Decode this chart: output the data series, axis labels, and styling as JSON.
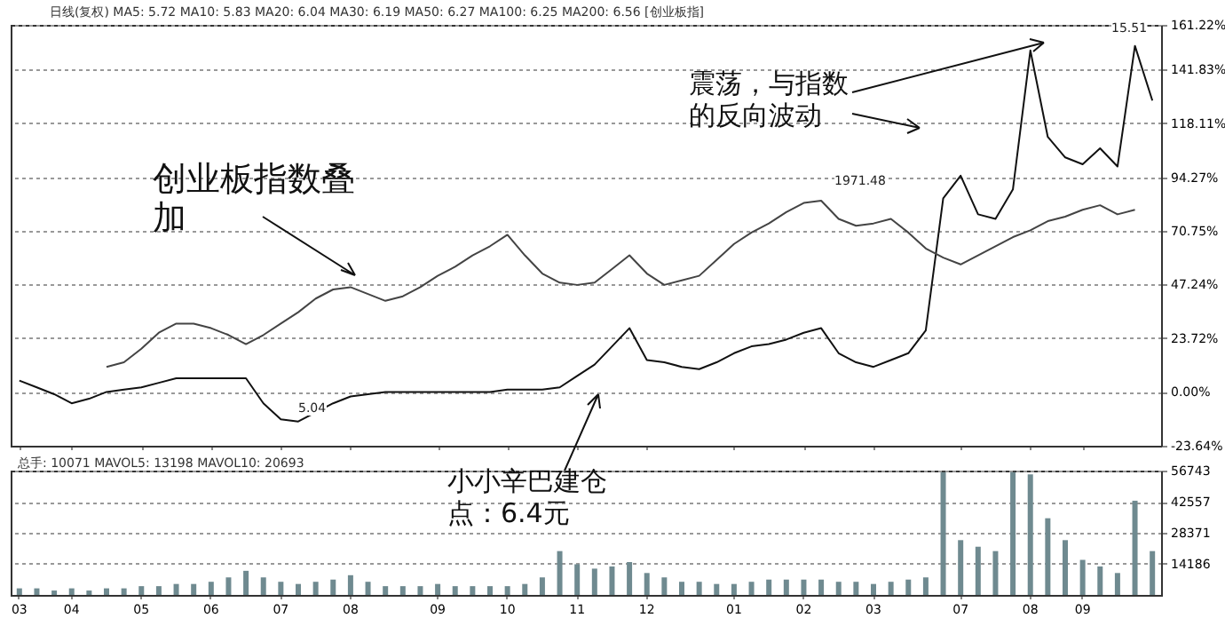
{
  "chart_data": [
    {
      "type": "line",
      "annotations": [
        "日线(复权) MA5: 5.72 MA10: 5.83 MA20: 6.04 MA30: 6.19 MA50: 6.27 MA100: 6.25 MA200: 6.56 [创业板指]",
        "创业板指数叠加",
        "震荡，与指数的反向波动",
        "小小辛巴建仓点：6.4元",
        "15.51",
        "5.04",
        "1971.48"
      ],
      "categories": [
        "03",
        null,
        null,
        "04",
        null,
        null,
        null,
        "05",
        null,
        null,
        null,
        "06",
        null,
        null,
        null,
        "07",
        null,
        null,
        null,
        "08",
        null,
        null,
        null,
        null,
        "09",
        null,
        null,
        null,
        "10",
        null,
        null,
        null,
        "11",
        null,
        null,
        null,
        "12",
        null,
        null,
        null,
        null,
        "01",
        null,
        null,
        null,
        "02",
        null,
        null,
        null,
        "03",
        null,
        null,
        null,
        null,
        "07",
        null,
        null,
        null,
        "08",
        null,
        null,
        "09",
        null,
        null,
        null,
        null
      ],
      "series": [
        {
          "color": "#111111",
          "values": [
            5,
            2,
            -1,
            -5,
            -3,
            0,
            1,
            2,
            4,
            6,
            6,
            6,
            6,
            6,
            -5,
            -12,
            -13,
            -9,
            -5,
            -2,
            -1,
            0,
            0,
            0,
            0,
            0,
            0,
            0,
            1,
            1,
            1,
            2,
            7,
            12,
            20,
            28,
            14,
            13,
            11,
            10,
            13,
            17,
            20,
            21,
            23,
            26,
            28,
            17,
            13,
            11,
            14,
            17,
            27,
            85,
            95,
            78,
            76,
            89,
            150,
            112,
            103,
            100,
            107,
            99,
            152,
            128
          ]
        },
        {
          "color": "#444444",
          "values": [
            null,
            null,
            null,
            null,
            null,
            11,
            13,
            19,
            26,
            30,
            30,
            28,
            25,
            21,
            25,
            30,
            35,
            41,
            45,
            46,
            43,
            40,
            42,
            46,
            51,
            55,
            60,
            64,
            69,
            60,
            52,
            48,
            47,
            48,
            54,
            60,
            52,
            47,
            49,
            51,
            58,
            65,
            70,
            74,
            79,
            83,
            84,
            76,
            73,
            74,
            76,
            70,
            63,
            59,
            56,
            60,
            64,
            68,
            71,
            75,
            77,
            80,
            82,
            78,
            80,
            null
          ]
        }
      ],
      "ylim": [
        -23.64,
        161.22
      ],
      "yticks": [
        {
          "value": 161.22,
          "label": "161.22%"
        },
        {
          "value": 141.83,
          "label": "141.83%"
        },
        {
          "value": 118.11,
          "label": "118.11%"
        },
        {
          "value": 94.27,
          "label": "94.27%"
        },
        {
          "value": 70.75,
          "label": "70.75%"
        },
        {
          "value": 47.24,
          "label": "47.24%"
        },
        {
          "value": 23.72,
          "label": "23.72%"
        },
        {
          "value": 0,
          "label": "0.00%"
        },
        {
          "value": -23.64,
          "label": "-23.64%"
        }
      ],
      "grid": "y",
      "tick_labels": "y"
    },
    {
      "type": "bar",
      "annotations": [
        "总手: 10071 MAVOL5: 13198 MAVOL10: 20693"
      ],
      "categories": [
        "03",
        null,
        null,
        "04",
        null,
        null,
        null,
        "05",
        null,
        null,
        null,
        "06",
        null,
        null,
        null,
        "07",
        null,
        null,
        null,
        "08",
        null,
        null,
        null,
        null,
        "09",
        null,
        null,
        null,
        "10",
        null,
        null,
        null,
        "11",
        null,
        null,
        null,
        "12",
        null,
        null,
        null,
        null,
        "01",
        null,
        null,
        null,
        "02",
        null,
        null,
        null,
        "03",
        null,
        null,
        null,
        null,
        "07",
        null,
        null,
        null,
        "08",
        null,
        null,
        "09",
        null,
        null,
        null,
        null
      ],
      "values": [
        3000,
        3000,
        2000,
        3000,
        2000,
        3000,
        3000,
        4000,
        4000,
        5000,
        5000,
        6000,
        8000,
        11000,
        8000,
        6000,
        5000,
        6000,
        7000,
        9000,
        6000,
        4000,
        4000,
        4000,
        5000,
        4000,
        4000,
        4000,
        4000,
        5000,
        8000,
        20000,
        14000,
        12000,
        13000,
        15000,
        10000,
        8000,
        6000,
        6000,
        5000,
        5000,
        6000,
        7000,
        7000,
        7000,
        7000,
        6000,
        6000,
        5000,
        6000,
        7000,
        8000,
        56000,
        25000,
        22000,
        20000,
        56000,
        55000,
        35000,
        25000,
        16000,
        13000,
        10000,
        43000,
        20000
      ],
      "color": "#6f8a90",
      "ylim": [
        0,
        56743
      ],
      "yticks": [
        14186,
        28371,
        42557,
        56743
      ],
      "grid": "y"
    }
  ]
}
